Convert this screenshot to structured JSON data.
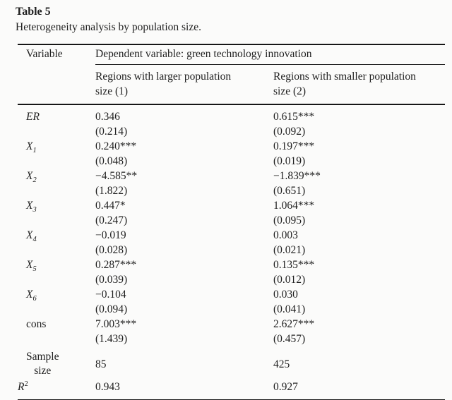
{
  "title": "Table 5",
  "caption": "Heterogeneity analysis by population size.",
  "colors": {
    "background": "#fbfbfa",
    "text": "#1f1f1f",
    "rule": "#161616"
  },
  "headers": {
    "variable": "Variable",
    "dependent": "Dependent variable: green technology innovation",
    "group1_line1": "Regions with larger population",
    "group1_line2": "size (1)",
    "group2_line1": "Regions with smaller population",
    "group2_line2": "size (2)"
  },
  "rows": [
    {
      "var": "ER",
      "sub": "",
      "b1": "0.346",
      "se1": "(0.214)",
      "b2": "0.615***",
      "se2": "(0.092)"
    },
    {
      "var": "X",
      "sub": "1",
      "b1": "0.240***",
      "se1": "(0.048)",
      "b2": "0.197***",
      "se2": "(0.019)"
    },
    {
      "var": "X",
      "sub": "2",
      "b1": "−4.585**",
      "se1": "(1.822)",
      "b2": "−1.839***",
      "se2": "(0.651)"
    },
    {
      "var": "X",
      "sub": "3",
      "b1": "0.447*",
      "se1": "(0.247)",
      "b2": "1.064***",
      "se2": "(0.095)"
    },
    {
      "var": "X",
      "sub": "4",
      "b1": "−0.019",
      "se1": "(0.028)",
      "b2": "0.003",
      "se2": "(0.021)"
    },
    {
      "var": "X",
      "sub": "5",
      "b1": "0.287***",
      "se1": "(0.039)",
      "b2": "0.135***",
      "se2": "(0.012)"
    },
    {
      "var": "X",
      "sub": "6",
      "b1": "−0.104",
      "se1": "(0.094)",
      "b2": "0.030",
      "se2": "(0.041)"
    },
    {
      "var": "cons",
      "sub": "",
      "b1": "7.003***",
      "se1": "(1.439)",
      "b2": "2.627***",
      "se2": "(0.457)"
    }
  ],
  "stats": [
    {
      "label": "Sample size",
      "v1": "85",
      "v2": "425"
    },
    {
      "label": "R",
      "sup": "2",
      "v1": "0.943",
      "v2": "0.927"
    }
  ]
}
